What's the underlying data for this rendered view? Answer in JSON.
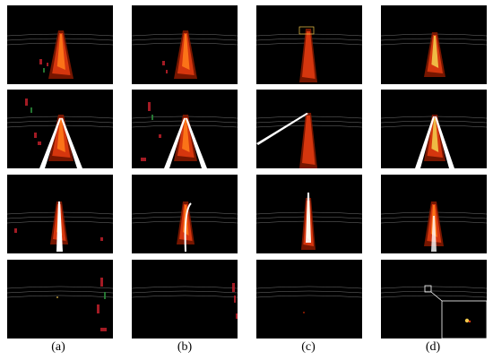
{
  "figure": {
    "columns": [
      {
        "label": "(a)"
      },
      {
        "label": "(b)"
      },
      {
        "label": "(c)"
      },
      {
        "label": "(d)"
      }
    ],
    "rows": 4
  },
  "colors": {
    "background": "#000000",
    "heat_outer": "#8b1a00",
    "heat_mid": "#e03a10",
    "heat_hot": "#ff7a1a",
    "heat_yellow": "#f2c84a",
    "beam": "#ffffff",
    "grid_line": "#cfcfcf",
    "noise_red": "#c0202a",
    "noise_green": "#2a8a3a"
  }
}
